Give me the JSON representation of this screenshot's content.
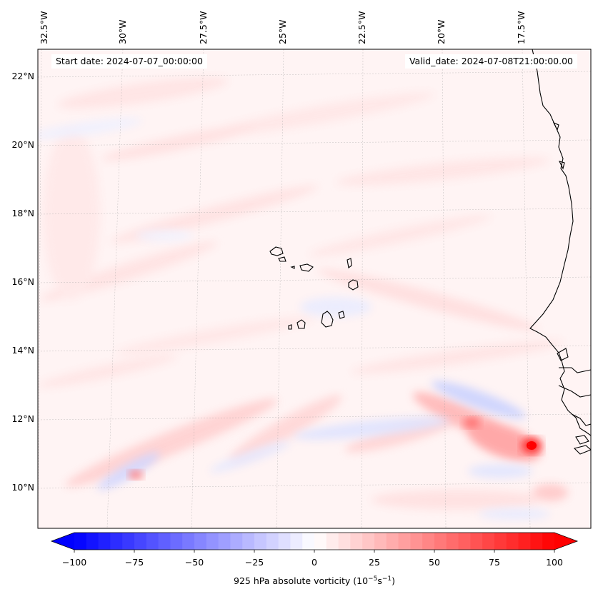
{
  "map": {
    "start_date_text": "Start date: 2024-07-07_00:00:00",
    "valid_date_text": "Valid_date: 2024-07-08T21:00:00.00",
    "lon_labels": [
      "32.5°W",
      "30°W",
      "27.5°W",
      "25°W",
      "22.5°W",
      "20°W",
      "17.5°W"
    ],
    "lat_labels": [
      "22°N",
      "20°N",
      "18°N",
      "16°N",
      "14°N",
      "12°N",
      "10°N"
    ],
    "gridlines": true,
    "colormap": "bwr",
    "colors": {
      "negative": "#0000ff",
      "neutral": "#ffffff",
      "positive": "#ff0000",
      "coastline": "#000000"
    }
  },
  "colorbar": {
    "ticks": [
      "−100",
      "−75",
      "−50",
      "−25",
      "0",
      "25",
      "50",
      "75",
      "100"
    ],
    "range": [
      -100,
      100
    ],
    "extend": "both",
    "label_text": "925 hPa absolute vorticity (10",
    "label_exp1": "−5",
    "label_mid": "s",
    "label_exp2": "−1",
    "label_close": ")"
  }
}
